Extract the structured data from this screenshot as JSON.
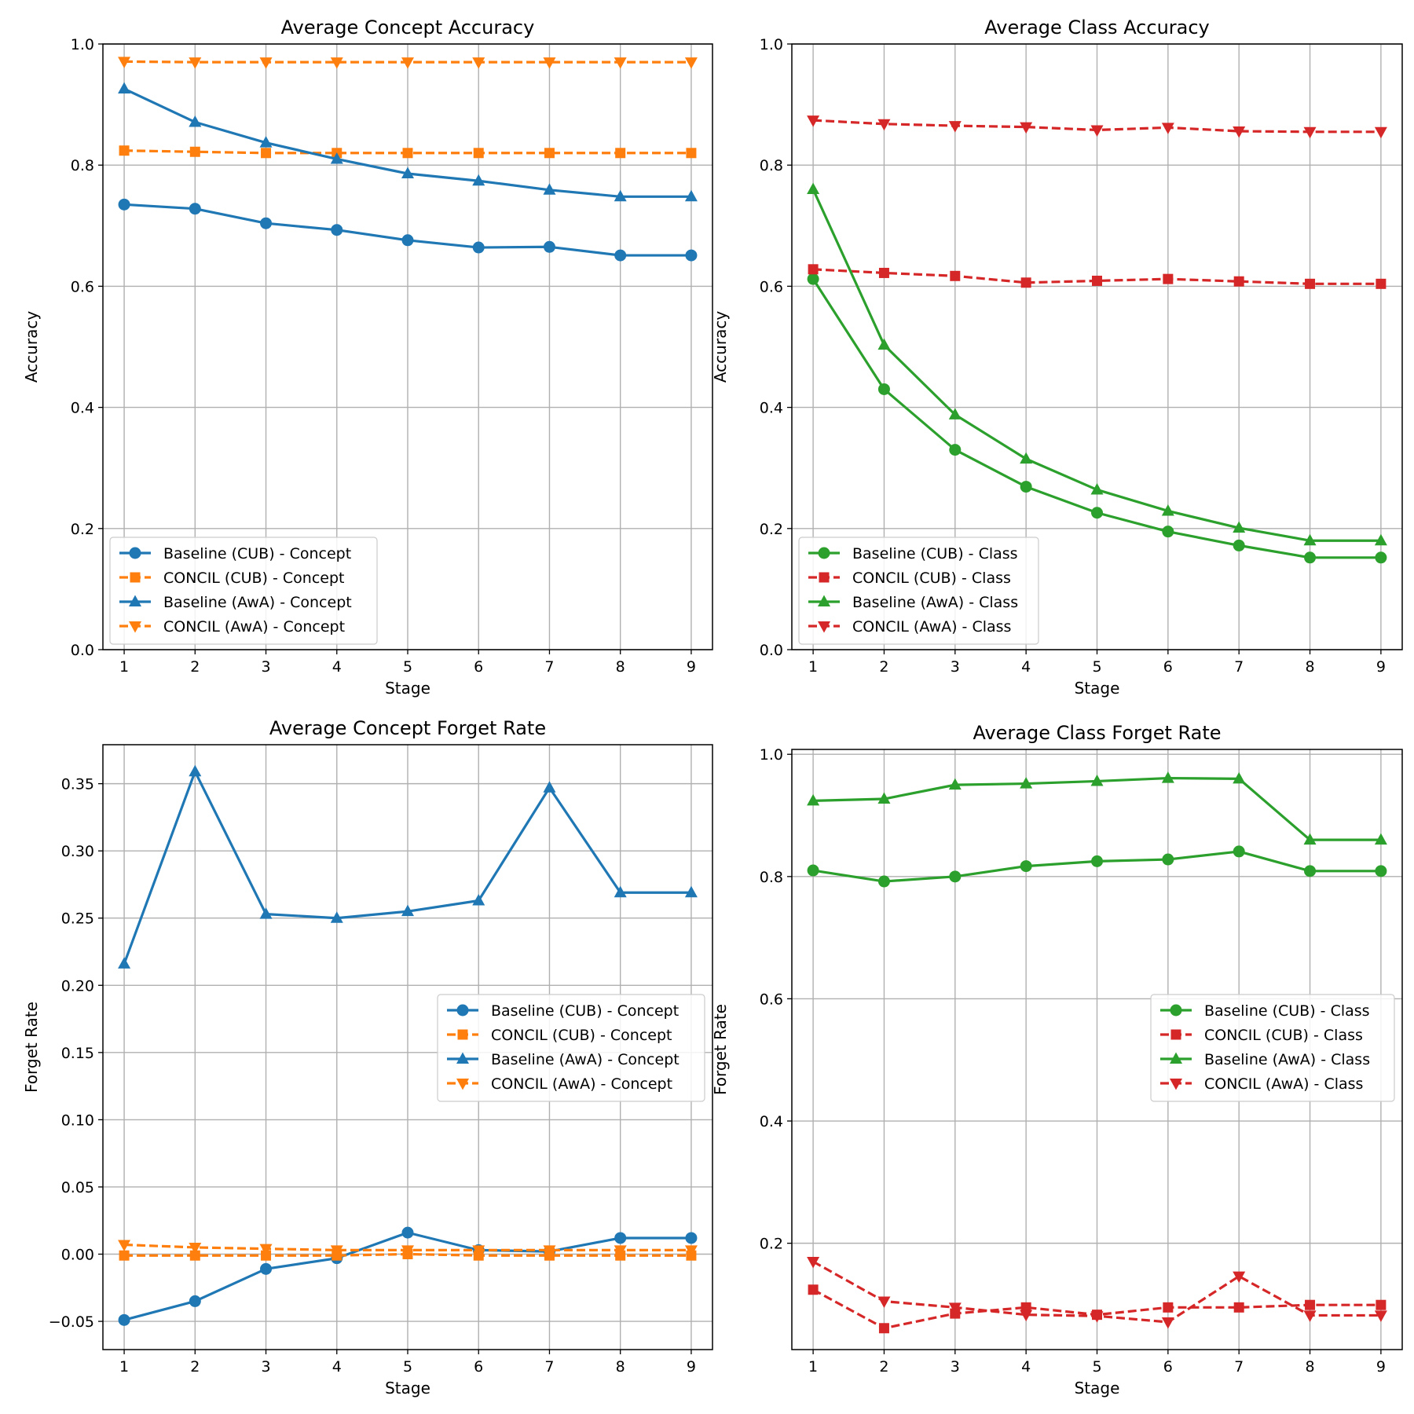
{
  "chart_data": [
    {
      "id": "concept-acc",
      "type": "line",
      "title": "Average Concept Accuracy",
      "xlabel": "Stage",
      "ylabel": "Accuracy",
      "x": [
        1,
        2,
        3,
        4,
        5,
        6,
        7,
        8,
        9
      ],
      "xlim": [
        0.7,
        9.3
      ],
      "ylim": [
        0.0,
        1.0
      ],
      "yticks": [
        0.0,
        0.2,
        0.4,
        0.6,
        0.8,
        1.0
      ],
      "ytick_labels": [
        "0.0",
        "0.2",
        "0.4",
        "0.6",
        "0.8",
        "1.0"
      ],
      "grid": true,
      "legend_position": "lower-left",
      "series": [
        {
          "name": "Baseline (CUB) - Concept",
          "color": "#1f77b4",
          "marker": "circle",
          "dashed": false,
          "values": [
            0.735,
            0.728,
            0.704,
            0.693,
            0.676,
            0.664,
            0.665,
            0.651,
            0.651
          ]
        },
        {
          "name": "CONCIL (CUB) - Concept",
          "color": "#ff7f0e",
          "marker": "square",
          "dashed": true,
          "values": [
            0.824,
            0.822,
            0.82,
            0.82,
            0.82,
            0.82,
            0.82,
            0.82,
            0.82
          ]
        },
        {
          "name": "Baseline (AwA) - Concept",
          "color": "#1f77b4",
          "marker": "triangle-up",
          "dashed": false,
          "values": [
            0.926,
            0.871,
            0.837,
            0.81,
            0.786,
            0.774,
            0.759,
            0.748,
            0.748
          ]
        },
        {
          "name": "CONCIL (AwA) - Concept",
          "color": "#ff7f0e",
          "marker": "triangle-down",
          "dashed": true,
          "values": [
            0.971,
            0.97,
            0.97,
            0.97,
            0.97,
            0.97,
            0.97,
            0.97,
            0.97
          ]
        }
      ]
    },
    {
      "id": "class-acc",
      "type": "line",
      "title": "Average Class Accuracy",
      "xlabel": "Stage",
      "ylabel": "Accuracy",
      "x": [
        1,
        2,
        3,
        4,
        5,
        6,
        7,
        8,
        9
      ],
      "xlim": [
        0.7,
        9.3
      ],
      "ylim": [
        0.0,
        1.0
      ],
      "yticks": [
        0.0,
        0.2,
        0.4,
        0.6,
        0.8,
        1.0
      ],
      "ytick_labels": [
        "0.0",
        "0.2",
        "0.4",
        "0.6",
        "0.8",
        "1.0"
      ],
      "grid": true,
      "legend_position": "lower-left",
      "series": [
        {
          "name": "Baseline (CUB) - Class",
          "color": "#2ca02c",
          "marker": "circle",
          "dashed": false,
          "values": [
            0.612,
            0.43,
            0.33,
            0.269,
            0.226,
            0.195,
            0.172,
            0.152,
            0.152
          ]
        },
        {
          "name": "CONCIL (CUB) - Class",
          "color": "#d62728",
          "marker": "square",
          "dashed": true,
          "values": [
            0.628,
            0.622,
            0.617,
            0.606,
            0.609,
            0.612,
            0.608,
            0.604,
            0.604
          ]
        },
        {
          "name": "Baseline (AwA) - Class",
          "color": "#2ca02c",
          "marker": "triangle-up",
          "dashed": false,
          "values": [
            0.76,
            0.503,
            0.388,
            0.315,
            0.264,
            0.229,
            0.201,
            0.18,
            0.18
          ]
        },
        {
          "name": "CONCIL (AwA) - Class",
          "color": "#d62728",
          "marker": "triangle-down",
          "dashed": true,
          "values": [
            0.874,
            0.868,
            0.865,
            0.863,
            0.858,
            0.862,
            0.856,
            0.855,
            0.855
          ]
        }
      ]
    },
    {
      "id": "concept-forget",
      "type": "line",
      "title": "Average Concept Forget Rate",
      "xlabel": "Stage",
      "ylabel": "Forget Rate",
      "x": [
        1,
        2,
        3,
        4,
        5,
        6,
        7,
        8,
        9
      ],
      "xlim": [
        0.7,
        9.3
      ],
      "ylim": [
        -0.071,
        0.379
      ],
      "yticks": [
        -0.05,
        0.0,
        0.05,
        0.1,
        0.15,
        0.2,
        0.25,
        0.3,
        0.35
      ],
      "ytick_labels": [
        "−0.05",
        "0.00",
        "0.05",
        "0.10",
        "0.15",
        "0.20",
        "0.25",
        "0.30",
        "0.35"
      ],
      "grid": true,
      "legend_position": "center-right",
      "series": [
        {
          "name": "Baseline (CUB) - Concept",
          "color": "#1f77b4",
          "marker": "circle",
          "dashed": false,
          "values": [
            -0.049,
            -0.035,
            -0.011,
            -0.003,
            0.016,
            0.003,
            0.002,
            0.012,
            0.012
          ]
        },
        {
          "name": "CONCIL (CUB) - Concept",
          "color": "#ff7f0e",
          "marker": "square",
          "dashed": true,
          "values": [
            -0.001,
            -0.001,
            -0.001,
            -0.001,
            0.0,
            -0.001,
            -0.001,
            -0.001,
            -0.001
          ]
        },
        {
          "name": "Baseline (AwA) - Concept",
          "color": "#1f77b4",
          "marker": "triangle-up",
          "dashed": false,
          "values": [
            0.216,
            0.359,
            0.253,
            0.25,
            0.255,
            0.263,
            0.347,
            0.269,
            0.269
          ]
        },
        {
          "name": "CONCIL (AwA) - Concept",
          "color": "#ff7f0e",
          "marker": "triangle-down",
          "dashed": true,
          "values": [
            0.007,
            0.005,
            0.004,
            0.003,
            0.003,
            0.003,
            0.003,
            0.003,
            0.003
          ]
        }
      ]
    },
    {
      "id": "class-forget",
      "type": "line",
      "title": "Average Class Forget Rate",
      "xlabel": "Stage",
      "ylabel": "Forget Rate",
      "x": [
        1,
        2,
        3,
        4,
        5,
        6,
        7,
        8,
        9
      ],
      "xlim": [
        0.7,
        9.3
      ],
      "ylim": [
        0.026,
        1.008
      ],
      "yticks": [
        0.2,
        0.4,
        0.6,
        0.8,
        1.0
      ],
      "ytick_labels": [
        "0.2",
        "0.4",
        "0.6",
        "0.8",
        "1.0"
      ],
      "grid": true,
      "legend_position": "center-right",
      "series": [
        {
          "name": "Baseline (CUB) - Class",
          "color": "#2ca02c",
          "marker": "circle",
          "dashed": false,
          "values": [
            0.81,
            0.792,
            0.8,
            0.817,
            0.825,
            0.828,
            0.841,
            0.809,
            0.809
          ]
        },
        {
          "name": "CONCIL (CUB) - Class",
          "color": "#d62728",
          "marker": "square",
          "dashed": true,
          "values": [
            0.124,
            0.061,
            0.085,
            0.095,
            0.083,
            0.095,
            0.095,
            0.099,
            0.099
          ]
        },
        {
          "name": "Baseline (AwA) - Class",
          "color": "#2ca02c",
          "marker": "triangle-up",
          "dashed": false,
          "values": [
            0.924,
            0.927,
            0.95,
            0.952,
            0.956,
            0.961,
            0.96,
            0.86,
            0.86
          ]
        },
        {
          "name": "CONCIL (AwA) - Class",
          "color": "#d62728",
          "marker": "triangle-down",
          "dashed": true,
          "values": [
            0.17,
            0.105,
            0.095,
            0.083,
            0.081,
            0.071,
            0.146,
            0.082,
            0.082
          ]
        }
      ]
    }
  ]
}
